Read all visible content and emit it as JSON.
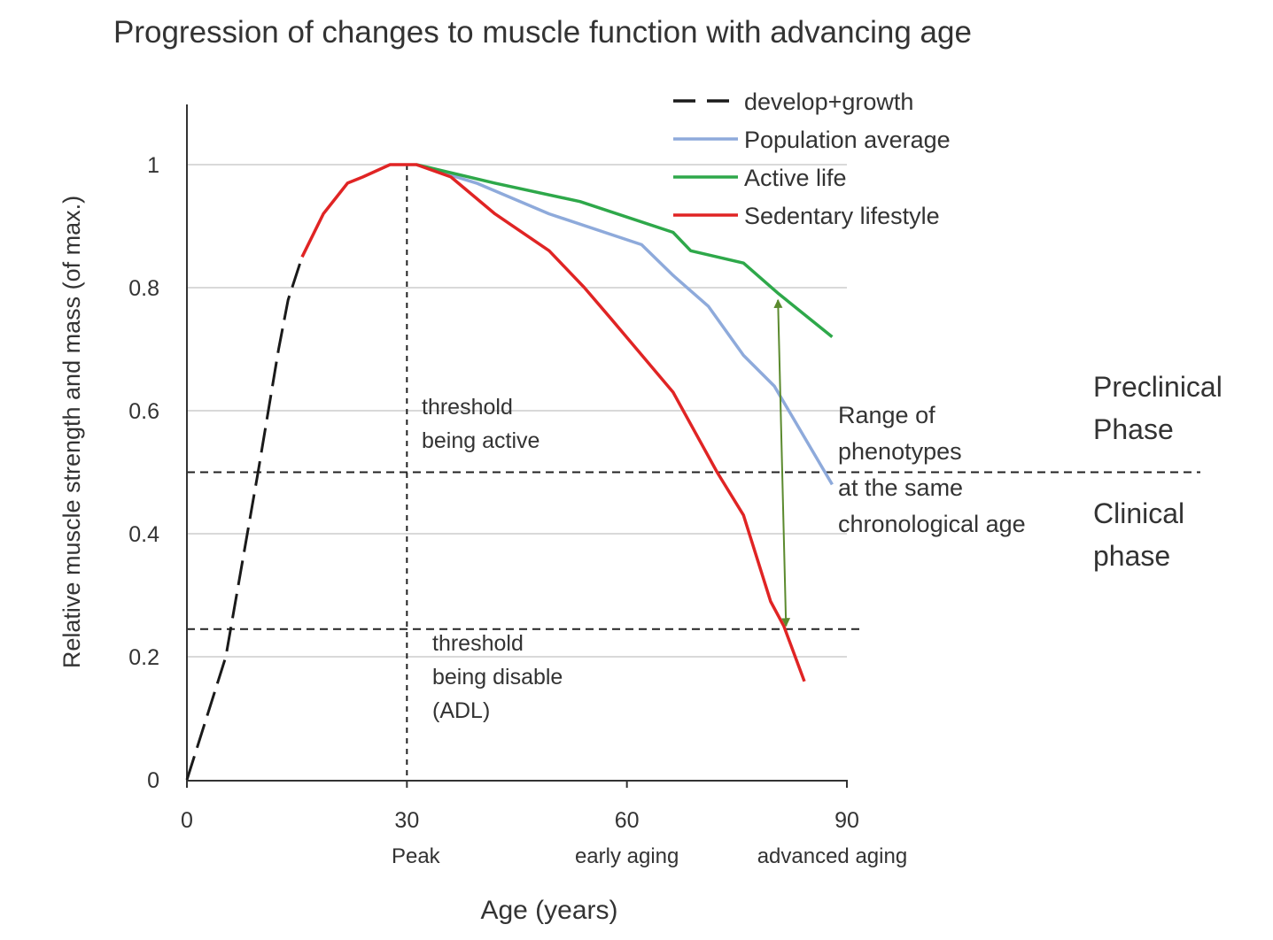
{
  "chart_data": {
    "type": "line",
    "title": "Progression of  changes to muscle function with advancing age",
    "xlabel": "Age (years)",
    "ylabel": "Relative muscle strength and mass (of max.)",
    "xlim": [
      0,
      90
    ],
    "ylim": [
      0,
      1.1
    ],
    "x_ticks": [
      0,
      30,
      60,
      90
    ],
    "x_tick_labels": [
      "0",
      "30",
      "60",
      "90"
    ],
    "x_sublabels": [
      {
        "x": 30,
        "text": "Peak"
      },
      {
        "x": 60,
        "text": "early aging"
      },
      {
        "x": 88,
        "text": "advanced aging"
      }
    ],
    "y_ticks": [
      0,
      0.2,
      0.4,
      0.6,
      0.8,
      1
    ],
    "y_tick_labels": [
      "0",
      "0.2",
      "0.4",
      "0.6",
      "0.8",
      "1"
    ],
    "grid": "horizontal",
    "legend_position": "top-right",
    "series": [
      {
        "name": "develop+growth",
        "color": "#1a1a1a",
        "style": "dashed",
        "points": [
          [
            0,
            0
          ],
          [
            5.3,
            0.2
          ],
          [
            9.7,
            0.5
          ],
          [
            12.5,
            0.7
          ],
          [
            13.8,
            0.78
          ],
          [
            15.7,
            0.85
          ]
        ]
      },
      {
        "name": "Population average",
        "color": "#8eaadb",
        "style": "solid",
        "points": [
          [
            31.3,
            1.0
          ],
          [
            39.5,
            0.97
          ],
          [
            49.4,
            0.92
          ],
          [
            62,
            0.87
          ],
          [
            66.3,
            0.82
          ],
          [
            71.1,
            0.77
          ],
          [
            75.9,
            0.69
          ],
          [
            80.1,
            0.64
          ],
          [
            88,
            0.48
          ]
        ]
      },
      {
        "name": "Active life",
        "color": "#2ea84a",
        "style": "solid",
        "points": [
          [
            31.3,
            1.0
          ],
          [
            42,
            0.97
          ],
          [
            53.6,
            0.94
          ],
          [
            66.3,
            0.89
          ],
          [
            68.7,
            0.86
          ],
          [
            75.9,
            0.84
          ],
          [
            80.7,
            0.79
          ],
          [
            88,
            0.72
          ]
        ]
      },
      {
        "name": "Sedentary lifestyle",
        "color": "#e02424",
        "style": "solid",
        "points": [
          [
            15.7,
            0.85
          ],
          [
            18.6,
            0.92
          ],
          [
            21.9,
            0.97
          ],
          [
            24,
            0.98
          ],
          [
            27.7,
            1.0
          ],
          [
            31.3,
            1.0
          ],
          [
            36,
            0.98
          ],
          [
            42,
            0.92
          ],
          [
            49.4,
            0.86
          ],
          [
            54.2,
            0.8
          ],
          [
            57.8,
            0.75
          ],
          [
            66.3,
            0.63
          ],
          [
            72.3,
            0.5
          ],
          [
            75.9,
            0.43
          ],
          [
            79.6,
            0.29
          ],
          [
            81.4,
            0.25
          ],
          [
            84.2,
            0.16
          ]
        ]
      }
    ],
    "reference_lines": {
      "active_threshold": 0.5,
      "disable_threshold": 0.245,
      "peak_age": 30
    },
    "range_arrow": {
      "color": "#5b8a2e",
      "from": [
        80.6,
        0.78
      ],
      "to": [
        81.7,
        0.25
      ]
    },
    "annotations": {
      "threshold_active": [
        "threshold",
        "being active"
      ],
      "threshold_disable": [
        "threshold",
        "being disable",
        "(ADL)"
      ],
      "range": [
        "Range of",
        "phenotypes",
        " at the same",
        "chronological age"
      ],
      "preclinical": [
        "Preclinical",
        "Phase"
      ],
      "clinical": [
        "Clinical",
        "phase"
      ]
    }
  }
}
